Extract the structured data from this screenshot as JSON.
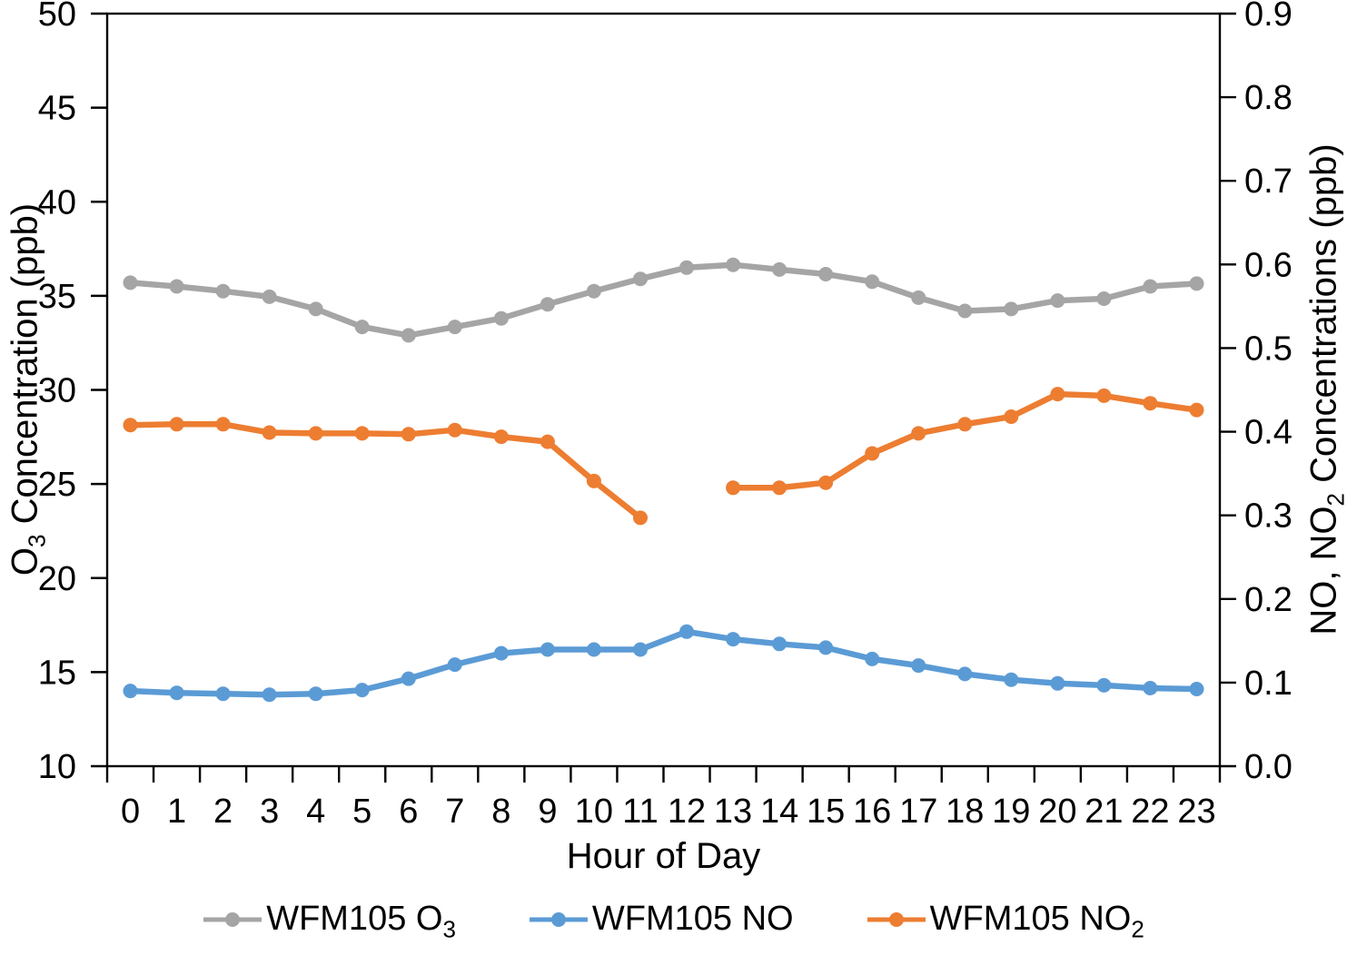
{
  "chart_data": {
    "type": "line",
    "title": "",
    "xlabel": "Hour of Day",
    "x_labels": [
      "0",
      "1",
      "2",
      "3",
      "4",
      "5",
      "6",
      "7",
      "8",
      "9",
      "10",
      "11",
      "12",
      "13",
      "14",
      "15",
      "16",
      "17",
      "18",
      "19",
      "20",
      "21",
      "22",
      "23"
    ],
    "axis_color": "#000000",
    "grid": false,
    "legend_position": "bottom",
    "left_axis": {
      "label": "O3 Concentration (ppb)",
      "min": 10,
      "max": 50,
      "step": 5,
      "ticks": [
        "10",
        "15",
        "20",
        "25",
        "30",
        "35",
        "40",
        "45",
        "50"
      ]
    },
    "right_axis": {
      "label": "NO, NO2 Concentrations (ppb)",
      "min": 0,
      "max": 0.9,
      "step": 0.1,
      "ticks": [
        "0.0",
        "0.1",
        "0.2",
        "0.3",
        "0.4",
        "0.5",
        "0.6",
        "0.7",
        "0.8",
        "0.9"
      ]
    },
    "series": [
      {
        "id": "wfm105-o3",
        "name": "WFM105 O3",
        "axis": "left",
        "color": "#A5A5A5",
        "values": [
          35.7,
          35.5,
          35.25,
          34.95,
          34.3,
          33.35,
          32.9,
          33.35,
          33.8,
          34.55,
          35.25,
          35.9,
          36.5,
          36.65,
          36.4,
          36.15,
          35.75,
          34.9,
          34.2,
          34.3,
          34.75,
          34.85,
          35.5,
          35.65
        ]
      },
      {
        "id": "wfm105-no",
        "name": "WFM105 NO",
        "axis": "left",
        "color": "#5B9BD5",
        "values": [
          14.0,
          13.9,
          13.85,
          13.8,
          13.85,
          14.05,
          14.65,
          15.4,
          16.0,
          16.2,
          16.2,
          16.2,
          17.15,
          16.75,
          16.5,
          16.3,
          15.7,
          15.35,
          14.9,
          14.6,
          14.4,
          14.3,
          14.15,
          14.1
        ]
      },
      {
        "id": "wfm105-no2",
        "name": "WFM105 NO2",
        "axis": "right",
        "color": "#ED7D31",
        "values": [
          0.408,
          0.409,
          0.409,
          0.399,
          0.398,
          0.398,
          0.397,
          0.402,
          0.394,
          0.388,
          0.341,
          0.297,
          null,
          0.333,
          0.333,
          0.339,
          0.374,
          0.398,
          0.409,
          0.418,
          0.445,
          0.443,
          0.434,
          0.426
        ]
      }
    ]
  },
  "axes_titles": {
    "left": {
      "main": "O",
      "sub": "3",
      "rest": " Concentration (ppb)"
    },
    "right": {
      "main": "NO, NO",
      "sub": "2",
      "rest": " Concentrations (ppb)"
    },
    "x": "Hour of Day"
  },
  "legend": {
    "items": [
      {
        "pre": "WFM105 O",
        "sub": "3"
      },
      {
        "pre": "WFM105 NO",
        "sub": ""
      },
      {
        "pre": "WFM105 NO",
        "sub": "2"
      }
    ]
  }
}
